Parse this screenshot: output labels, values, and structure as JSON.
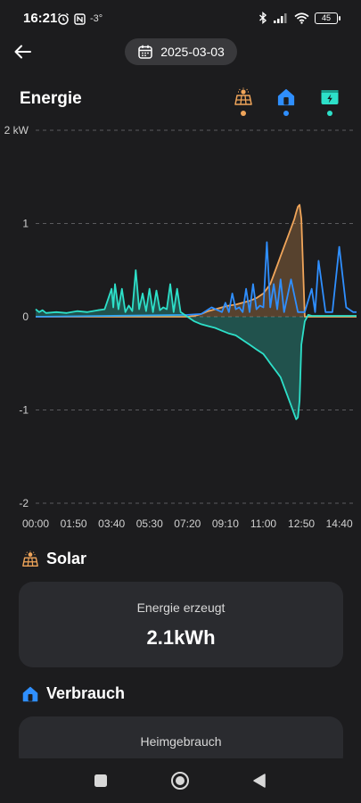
{
  "status_bar": {
    "time": "16:21",
    "temperature": "-3°",
    "battery": "45",
    "icons": [
      "alarm-icon",
      "nfc-icon",
      "bluetooth-icon",
      "signal-icon",
      "wifi-icon",
      "battery-icon"
    ]
  },
  "header": {
    "back_icon": "arrow-left-icon",
    "date": "2025-03-03",
    "date_icon": "calendar-icon"
  },
  "title": "Energie",
  "filters": [
    {
      "name": "solar",
      "icon": "solar-panel-icon",
      "color": "#f0a55a"
    },
    {
      "name": "home",
      "icon": "home-icon",
      "color": "#2f8fff"
    },
    {
      "name": "battery",
      "icon": "battery-charge-icon",
      "color": "#2de0c9"
    }
  ],
  "chart_data": {
    "type": "line",
    "unit": "kW",
    "y_ticks": [
      "2 kW",
      "1",
      "0",
      "-1",
      "-2"
    ],
    "ylim": [
      -2,
      2
    ],
    "x_ticks": [
      "00:00",
      "01:50",
      "03:40",
      "05:30",
      "07:20",
      "09:10",
      "11:00",
      "12:50",
      "14:40"
    ],
    "grid": true,
    "series": [
      {
        "color": "#f0a55a",
        "area": true,
        "x": [
          "00:00",
          "07:20",
          "07:40",
          "08:00",
          "08:20",
          "08:40",
          "09:00",
          "09:20",
          "09:40",
          "10:00",
          "10:20",
          "10:40",
          "11:00",
          "11:10",
          "11:20",
          "11:30",
          "11:40",
          "11:50",
          "12:00",
          "12:10",
          "12:20",
          "12:30",
          "12:35",
          "12:40",
          "12:45",
          "12:50",
          "13:00",
          "15:30"
        ],
        "values": [
          0,
          0,
          0.01,
          0.03,
          0.06,
          0.08,
          0.1,
          0.12,
          0.13,
          0.15,
          0.17,
          0.2,
          0.25,
          0.3,
          0.35,
          0.45,
          0.55,
          0.65,
          0.75,
          0.85,
          0.95,
          1.05,
          1.12,
          1.18,
          1.2,
          1.05,
          0,
          0
        ]
      },
      {
        "color": "#2f8fff",
        "x": [
          "00:00",
          "07:20",
          "08:00",
          "08:30",
          "09:00",
          "09:10",
          "09:20",
          "09:30",
          "09:40",
          "09:50",
          "10:00",
          "10:10",
          "10:20",
          "10:30",
          "10:40",
          "10:50",
          "11:00",
          "11:10",
          "11:20",
          "11:30",
          "11:40",
          "11:50",
          "12:00",
          "12:20",
          "12:40",
          "13:00",
          "13:20",
          "13:30",
          "13:40",
          "14:00",
          "14:20",
          "14:40",
          "15:00",
          "15:20",
          "15:30"
        ],
        "values": [
          0,
          0.02,
          0.03,
          0.1,
          0.05,
          0.15,
          0.05,
          0.25,
          0.08,
          0.1,
          0.05,
          0.3,
          0.05,
          0.35,
          0.08,
          0.12,
          0.1,
          0.8,
          0.1,
          0.35,
          0.08,
          0.4,
          0.05,
          0.4,
          0.05,
          0.05,
          0.3,
          0.05,
          0.6,
          0.05,
          0.05,
          0.75,
          0.1,
          0.05,
          0.05
        ]
      },
      {
        "color": "#2de0c9",
        "area": true,
        "x": [
          "00:00",
          "00:10",
          "00:20",
          "00:30",
          "01:00",
          "01:30",
          "02:00",
          "02:30",
          "03:00",
          "03:20",
          "03:40",
          "03:45",
          "03:50",
          "04:00",
          "04:10",
          "04:20",
          "04:30",
          "04:40",
          "04:50",
          "05:00",
          "05:10",
          "05:20",
          "05:30",
          "05:40",
          "05:50",
          "06:00",
          "06:10",
          "06:20",
          "06:30",
          "06:40",
          "06:50",
          "07:00",
          "07:20",
          "07:40",
          "08:00",
          "08:20",
          "08:40",
          "09:00",
          "09:20",
          "09:40",
          "10:00",
          "10:20",
          "10:40",
          "11:00",
          "11:10",
          "11:20",
          "11:30",
          "11:40",
          "11:50",
          "12:00",
          "12:10",
          "12:20",
          "12:30",
          "12:35",
          "12:40",
          "12:45",
          "12:50",
          "13:00",
          "13:10",
          "13:20",
          "15:30"
        ],
        "values": [
          0.08,
          0.05,
          0.07,
          0.04,
          0.05,
          0.04,
          0.06,
          0.05,
          0.07,
          0.08,
          0.3,
          0.1,
          0.35,
          0.08,
          0.3,
          0.05,
          0.12,
          0.06,
          0.5,
          0.08,
          0.25,
          0.06,
          0.3,
          0.05,
          0.28,
          0.07,
          0.1,
          0.08,
          0.35,
          0.05,
          0.3,
          0.05,
          0,
          -0.05,
          -0.08,
          -0.1,
          -0.12,
          -0.15,
          -0.18,
          -0.2,
          -0.25,
          -0.3,
          -0.35,
          -0.4,
          -0.45,
          -0.5,
          -0.55,
          -0.6,
          -0.65,
          -0.75,
          -0.85,
          -0.95,
          -1.05,
          -1.1,
          -1.08,
          -0.9,
          -0.3,
          -0.05,
          0.02,
          0.01,
          0.01
        ]
      }
    ]
  },
  "solar": {
    "title": "Solar",
    "icon": "solar-panel-icon",
    "label": "Energie erzeugt",
    "value": "2.1kWh"
  },
  "consumption": {
    "title": "Verbrauch",
    "icon": "home-icon",
    "label": "Heimgebrauch"
  },
  "nav": {
    "icons": [
      "recent-apps-icon",
      "home-circle-icon",
      "back-triangle-icon"
    ]
  }
}
